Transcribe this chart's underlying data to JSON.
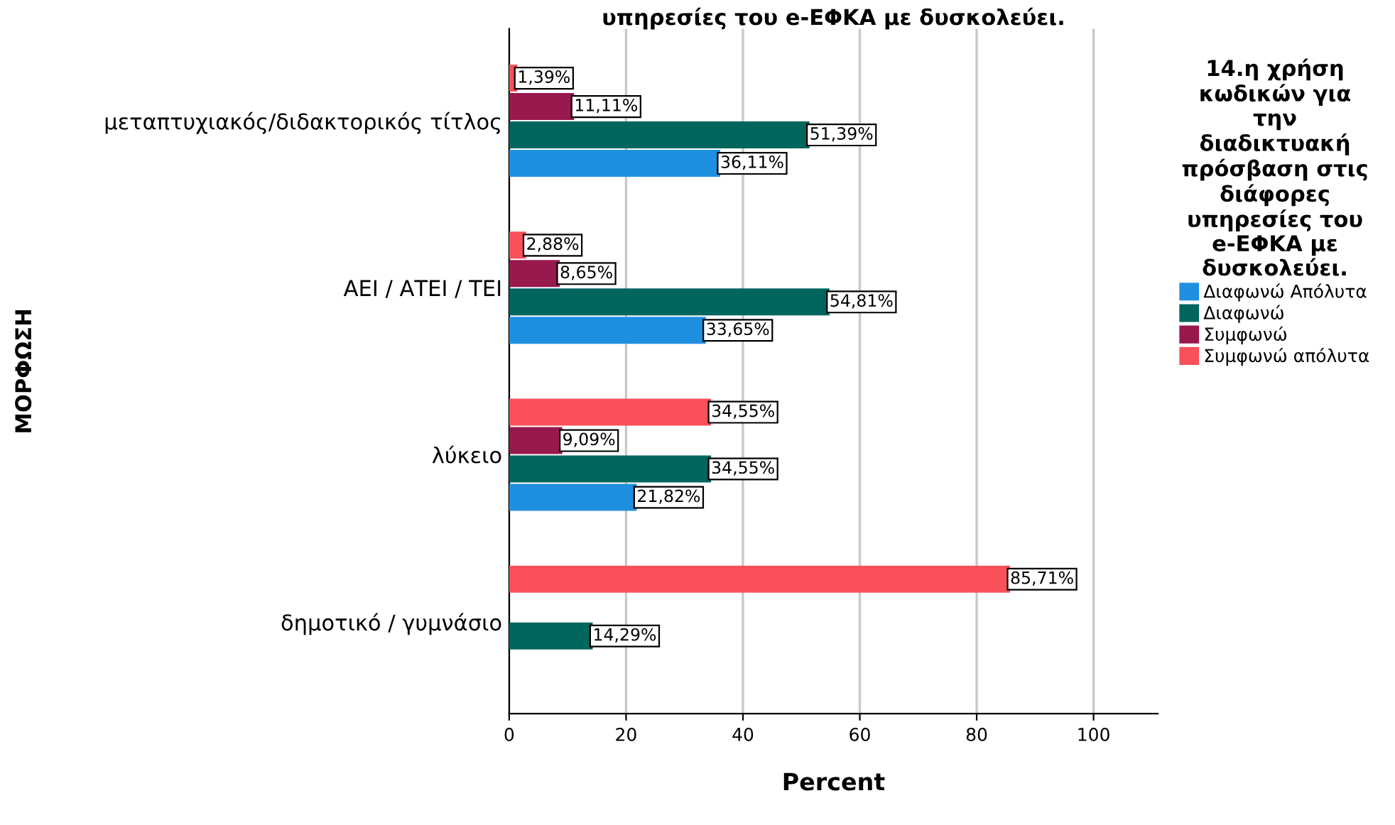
{
  "chart_data": {
    "type": "bar",
    "orientation": "horizontal",
    "title": "υπηρεσίες του e-ΕΦΚΑ με δυσκολεύει.",
    "categories": [
      "μεταπτυχιακός/διδακτορικός τίτλος",
      "ΑΕΙ / ΑΤΕΙ / ΤΕΙ",
      "λύκειο",
      "δημοτικό / γυμνάσιο"
    ],
    "series": [
      {
        "name": "Διαφωνώ Απόλυτα",
        "color": "#1f8fe0",
        "values": [
          36.11,
          33.65,
          21.82,
          null
        ],
        "value_labels": [
          "36,11%",
          "33,65%",
          "21,82%",
          null
        ]
      },
      {
        "name": "Διαφωνώ",
        "color": "#00665e",
        "values": [
          51.39,
          54.81,
          34.55,
          14.29
        ],
        "value_labels": [
          "51,39%",
          "54,81%",
          "34,55%",
          "14,29%"
        ]
      },
      {
        "name": "Συμφωνώ",
        "color": "#98194e",
        "values": [
          11.11,
          8.65,
          9.09,
          null
        ],
        "value_labels": [
          "11,11%",
          "8,65%",
          "9,09%",
          null
        ]
      },
      {
        "name": "Συμφωνώ απόλυτα",
        "color": "#f9505a",
        "values": [
          1.39,
          2.88,
          34.55,
          85.71
        ],
        "value_labels": [
          "1,39%",
          "2,88%",
          "34,55%",
          "85,71%"
        ]
      }
    ],
    "xlabel": "Percent",
    "ylabel": "ΜΟΡΦΩΣΗ",
    "legend_title": "14.η χρήση\nκωδικών για\nτην\nδιαδικτυακή\nπρόσβαση στις\nδιάφορες\nυπηρεσίες του\ne-ΕΦΚΑ με\nδυσκολεύει.",
    "xlim": [
      0,
      111
    ],
    "xticks": [
      0,
      20,
      40,
      60,
      80,
      100
    ],
    "grid": "x",
    "legend": "right"
  }
}
